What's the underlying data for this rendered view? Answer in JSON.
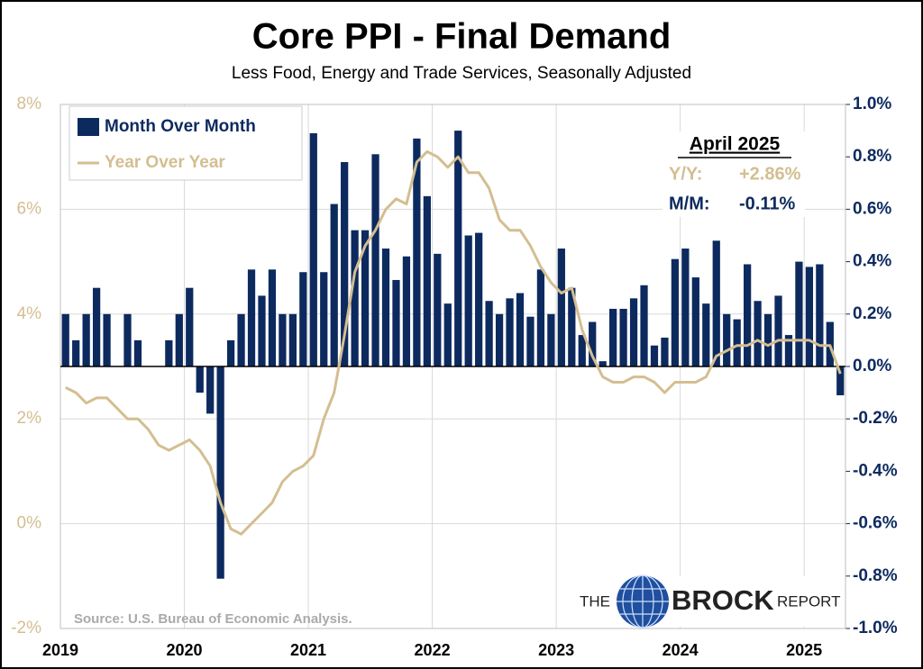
{
  "chart_data": {
    "type": "bar_line",
    "title": "Core PPI - Final Demand",
    "subtitle": "Less Food, Energy and Trade Services, Seasonally Adjusted",
    "source": "Source: U.S. Bureau of Economic Analysis.",
    "logo": {
      "pre": "THE",
      "name": "BROCK",
      "post": "REPORT"
    },
    "annotation": {
      "title": "April 2025",
      "yoy_label": "Y/Y:",
      "yoy_value": "+2.86%",
      "mom_label": "M/M:",
      "mom_value": "-0.11%"
    },
    "categories": [
      "2019",
      null,
      null,
      null,
      null,
      null,
      null,
      null,
      null,
      null,
      null,
      null,
      "2020",
      null,
      null,
      null,
      null,
      null,
      null,
      null,
      null,
      null,
      null,
      null,
      "2021",
      null,
      null,
      null,
      null,
      null,
      null,
      null,
      null,
      null,
      null,
      null,
      "2022",
      null,
      null,
      null,
      null,
      null,
      null,
      null,
      null,
      null,
      null,
      null,
      "2023",
      null,
      null,
      null,
      null,
      null,
      null,
      null,
      null,
      null,
      null,
      null,
      "2024",
      null,
      null,
      null,
      null,
      null,
      null,
      null,
      null,
      null,
      null,
      null,
      "2025",
      null,
      null,
      null
    ],
    "series": [
      {
        "name": "Month Over Month",
        "kind": "bar",
        "axis": "y2",
        "color": "#0d2a5f",
        "values": [
          0.2,
          0.1,
          0.2,
          0.3,
          0.2,
          0.0,
          0.2,
          0.1,
          0.0,
          0.0,
          0.1,
          0.2,
          0.3,
          -0.1,
          -0.18,
          -0.81,
          0.1,
          0.2,
          0.37,
          0.27,
          0.37,
          0.2,
          0.2,
          0.36,
          0.89,
          0.36,
          0.62,
          0.78,
          0.52,
          0.52,
          0.81,
          0.45,
          0.33,
          0.42,
          0.87,
          0.65,
          0.43,
          0.24,
          0.9,
          0.5,
          0.51,
          0.25,
          0.2,
          0.26,
          0.28,
          0.19,
          0.37,
          0.2,
          0.45,
          0.3,
          0.12,
          0.17,
          0.02,
          0.22,
          0.22,
          0.26,
          0.31,
          0.08,
          0.11,
          0.41,
          0.45,
          0.34,
          0.24,
          0.48,
          0.2,
          0.18,
          0.39,
          0.25,
          0.2,
          0.27,
          0.12,
          0.4,
          0.38,
          0.39,
          0.17,
          -0.11
        ]
      },
      {
        "name": "Year Over Year",
        "kind": "line",
        "axis": "y",
        "color": "#d4be91",
        "values": [
          2.6,
          2.5,
          2.3,
          2.4,
          2.4,
          2.2,
          2.0,
          2.0,
          1.8,
          1.5,
          1.4,
          1.5,
          1.6,
          1.4,
          1.1,
          0.4,
          -0.1,
          -0.2,
          0.0,
          0.2,
          0.4,
          0.8,
          1.0,
          1.1,
          1.3,
          2.0,
          2.5,
          3.6,
          4.8,
          5.3,
          5.6,
          6.0,
          6.2,
          6.1,
          6.9,
          7.1,
          7.0,
          6.8,
          7.0,
          6.7,
          6.7,
          6.4,
          5.8,
          5.6,
          5.6,
          5.3,
          4.9,
          4.6,
          4.4,
          4.5,
          3.7,
          3.2,
          2.8,
          2.7,
          2.7,
          2.8,
          2.8,
          2.7,
          2.5,
          2.7,
          2.7,
          2.7,
          2.8,
          3.2,
          3.3,
          3.4,
          3.4,
          3.5,
          3.4,
          3.5,
          3.5,
          3.5,
          3.5,
          3.4,
          3.4,
          2.86
        ]
      }
    ],
    "ylim": [
      -2,
      8
    ],
    "yticks": [
      {
        "value": -2,
        "label": "-2%"
      },
      {
        "value": 0,
        "label": "0%"
      },
      {
        "value": 2,
        "label": "2%"
      },
      {
        "value": 4,
        "label": "4%"
      },
      {
        "value": 6,
        "label": "6%"
      },
      {
        "value": 8,
        "label": "8%"
      }
    ],
    "y2lim": [
      -1.0,
      1.0
    ],
    "y2ticks": [
      {
        "value": -1.0,
        "label": "-1.0%"
      },
      {
        "value": -0.8,
        "label": "-0.8%"
      },
      {
        "value": -0.6,
        "label": "-0.6%"
      },
      {
        "value": -0.4,
        "label": "-0.4%"
      },
      {
        "value": -0.2,
        "label": "-0.2%"
      },
      {
        "value": 0.0,
        "label": "0.0%"
      },
      {
        "value": 0.2,
        "label": "0.2%"
      },
      {
        "value": 0.4,
        "label": "0.4%"
      },
      {
        "value": 0.6,
        "label": "0.6%"
      },
      {
        "value": 0.8,
        "label": "0.8%"
      },
      {
        "value": 1.0,
        "label": "1.0%"
      }
    ],
    "grid": true,
    "legend": "top-left"
  }
}
